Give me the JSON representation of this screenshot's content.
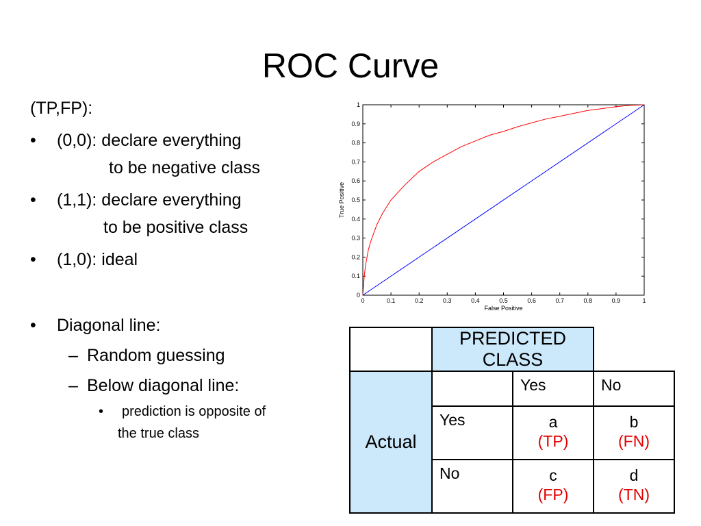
{
  "slide": {
    "title": "ROC Curve",
    "left": {
      "heading": "(TP,FP):",
      "bullet_marker": "•",
      "bullets": [
        {
          "line1": "(0,0): declare everything",
          "line2": "to be negative class"
        },
        {
          "line1": "(1,1): declare everything",
          "line2": "to be positive class"
        },
        {
          "line1": "(1,0): ideal"
        }
      ],
      "diagonal": {
        "label": "Diagonal line:",
        "dash": "–",
        "subs": [
          "Random guessing",
          "Below diagonal line:"
        ],
        "subsub": {
          "line1": "prediction is opposite of",
          "line2": "the true class"
        }
      }
    },
    "matrix": {
      "predicted_label": "PREDICTED CLASS",
      "actual_label": "Actual",
      "col_headers": [
        "Yes",
        "No"
      ],
      "rows": [
        {
          "label": "Yes",
          "cells": [
            {
              "letter": "a",
              "tag": "(TP)"
            },
            {
              "letter": "b",
              "tag": "(FN)"
            }
          ]
        },
        {
          "label": "No",
          "cells": [
            {
              "letter": "c",
              "tag": "(FP)"
            },
            {
              "letter": "d",
              "tag": "(TN)"
            }
          ]
        }
      ],
      "colors": {
        "shade": "#cce8fb",
        "tag": "#e00000"
      }
    }
  },
  "chart_data": {
    "type": "line",
    "title": "",
    "xlabel": "False Positive",
    "ylabel": "True Positive",
    "xlim": [
      0,
      1
    ],
    "ylim": [
      0,
      1
    ],
    "xticks": [
      "0",
      "0.1",
      "0.2",
      "0.3",
      "0.4",
      "0.5",
      "0.6",
      "0.7",
      "0.8",
      "0.9",
      "1"
    ],
    "yticks": [
      "0",
      "0.1",
      "0.2",
      "0.3",
      "0.4",
      "0.5",
      "0.6",
      "0.7",
      "0.8",
      "0.9",
      "1"
    ],
    "grid": false,
    "series": [
      {
        "color": "#ff0000",
        "x": [
          0,
          0.005,
          0.01,
          0.02,
          0.03,
          0.05,
          0.07,
          0.1,
          0.15,
          0.2,
          0.25,
          0.3,
          0.35,
          0.4,
          0.45,
          0.5,
          0.55,
          0.6,
          0.65,
          0.7,
          0.75,
          0.8,
          0.85,
          0.9,
          0.95,
          1
        ],
        "y": [
          0,
          0.1,
          0.16,
          0.24,
          0.29,
          0.37,
          0.43,
          0.5,
          0.58,
          0.65,
          0.7,
          0.74,
          0.78,
          0.81,
          0.84,
          0.86,
          0.885,
          0.905,
          0.925,
          0.94,
          0.955,
          0.97,
          0.98,
          0.99,
          0.997,
          1
        ]
      },
      {
        "color": "#0000ff",
        "x": [
          0,
          1
        ],
        "y": [
          0,
          1
        ]
      }
    ]
  }
}
